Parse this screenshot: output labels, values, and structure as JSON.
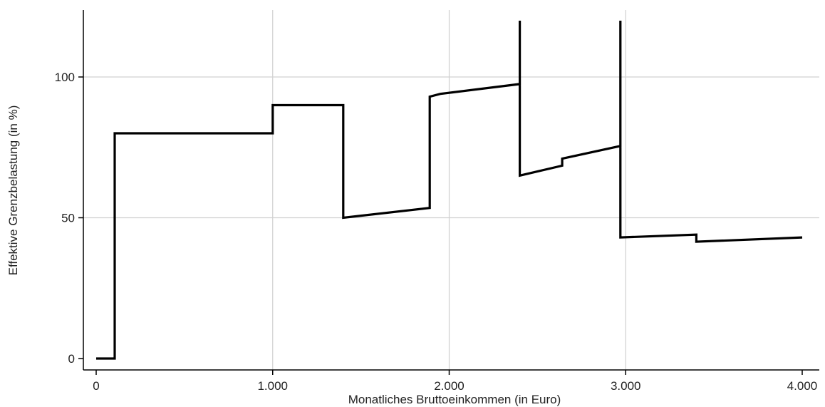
{
  "chart_data": {
    "type": "line",
    "title": "",
    "xlabel": "Monatliches Bruttoeinkommen (in Euro)",
    "ylabel": "Effektive Grenzbelastung (in %)",
    "xlim": [
      0,
      4000
    ],
    "ylim": [
      0,
      120
    ],
    "x_ticks": [
      0,
      1000,
      2000,
      3000,
      4000
    ],
    "x_tick_labels": [
      "0",
      "1.000",
      "2.000",
      "3.000",
      "4.000"
    ],
    "y_ticks": [
      0,
      50,
      100
    ],
    "y_tick_labels": [
      "0",
      "50",
      "100"
    ],
    "grid": true,
    "legend": "none",
    "line_color": "#000000",
    "grid_color": "#d0d0d0",
    "series": [
      {
        "x": [
          0,
          105,
          105,
          1000,
          1000,
          1400,
          1400,
          1890,
          1890,
          1950,
          2400,
          2400,
          2400,
          2640,
          2640,
          2970,
          2970,
          2970,
          3400,
          3400,
          4000
        ],
        "y": [
          0,
          0,
          80,
          80,
          90,
          90,
          50,
          53.5,
          93,
          94,
          97.5,
          120,
          65,
          68.5,
          71,
          75.5,
          120,
          43,
          44,
          41.5,
          43
        ]
      }
    ]
  }
}
